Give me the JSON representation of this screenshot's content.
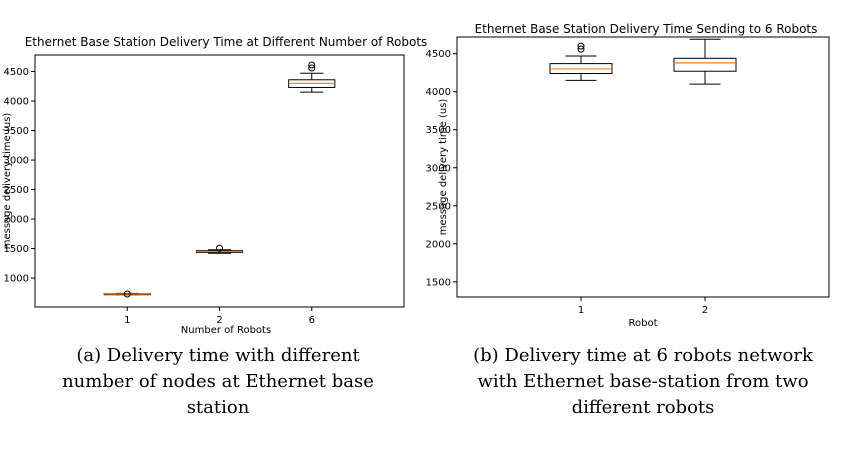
{
  "chart_data": [
    {
      "type": "box",
      "title": "Ethernet Base Station Delivery Time at Different Number of Robots",
      "xlabel": "Number of Robots",
      "ylabel": "message delivery time (us)",
      "categories": [
        "1",
        "2",
        "6"
      ],
      "yticks": [
        1000,
        1500,
        2000,
        2500,
        3000,
        3500,
        4000,
        4500
      ],
      "ylim": [
        510,
        4780
      ],
      "grid": false,
      "boxes": [
        {
          "category": "1",
          "whisker_low": 720,
          "q1": 725,
          "median": 730,
          "q3": 735,
          "whisker_high": 740,
          "outliers": [
            730
          ]
        },
        {
          "category": "2",
          "whisker_low": 1420,
          "q1": 1435,
          "median": 1450,
          "q3": 1465,
          "whisker_high": 1480,
          "outliers": [
            1505
          ]
        },
        {
          "category": "6",
          "whisker_low": 4150,
          "q1": 4230,
          "median": 4300,
          "q3": 4360,
          "whisker_high": 4470,
          "outliers": [
            4560,
            4610
          ]
        }
      ]
    },
    {
      "type": "box",
      "title": "Ethernet Base Station Delivery Time Sending to 6 Robots",
      "xlabel": "Robot",
      "ylabel": "message delivery time (us)",
      "categories": [
        "1",
        "2"
      ],
      "yticks": [
        1500,
        2000,
        2500,
        3000,
        3500,
        4000,
        4500
      ],
      "ylim": [
        1300,
        4720
      ],
      "grid": false,
      "boxes": [
        {
          "category": "1",
          "whisker_low": 4150,
          "q1": 4240,
          "median": 4300,
          "q3": 4370,
          "whisker_high": 4470,
          "outliers": [
            4560,
            4600
          ]
        },
        {
          "category": "2",
          "whisker_low": 4100,
          "q1": 4270,
          "median": 4380,
          "q3": 4440,
          "whisker_high": 4690,
          "outliers": []
        }
      ]
    }
  ],
  "captions": [
    {
      "lines": [
        "(a) Delivery time with different",
        "number of nodes at Ethernet base",
        "station"
      ]
    },
    {
      "lines": [
        "(b) Delivery time at 6 robots network",
        "with Ethernet base-station from two",
        "different robots"
      ]
    }
  ],
  "colors": {
    "median": "#ff7f0e",
    "box": "#000000",
    "background": "#ffffff"
  }
}
